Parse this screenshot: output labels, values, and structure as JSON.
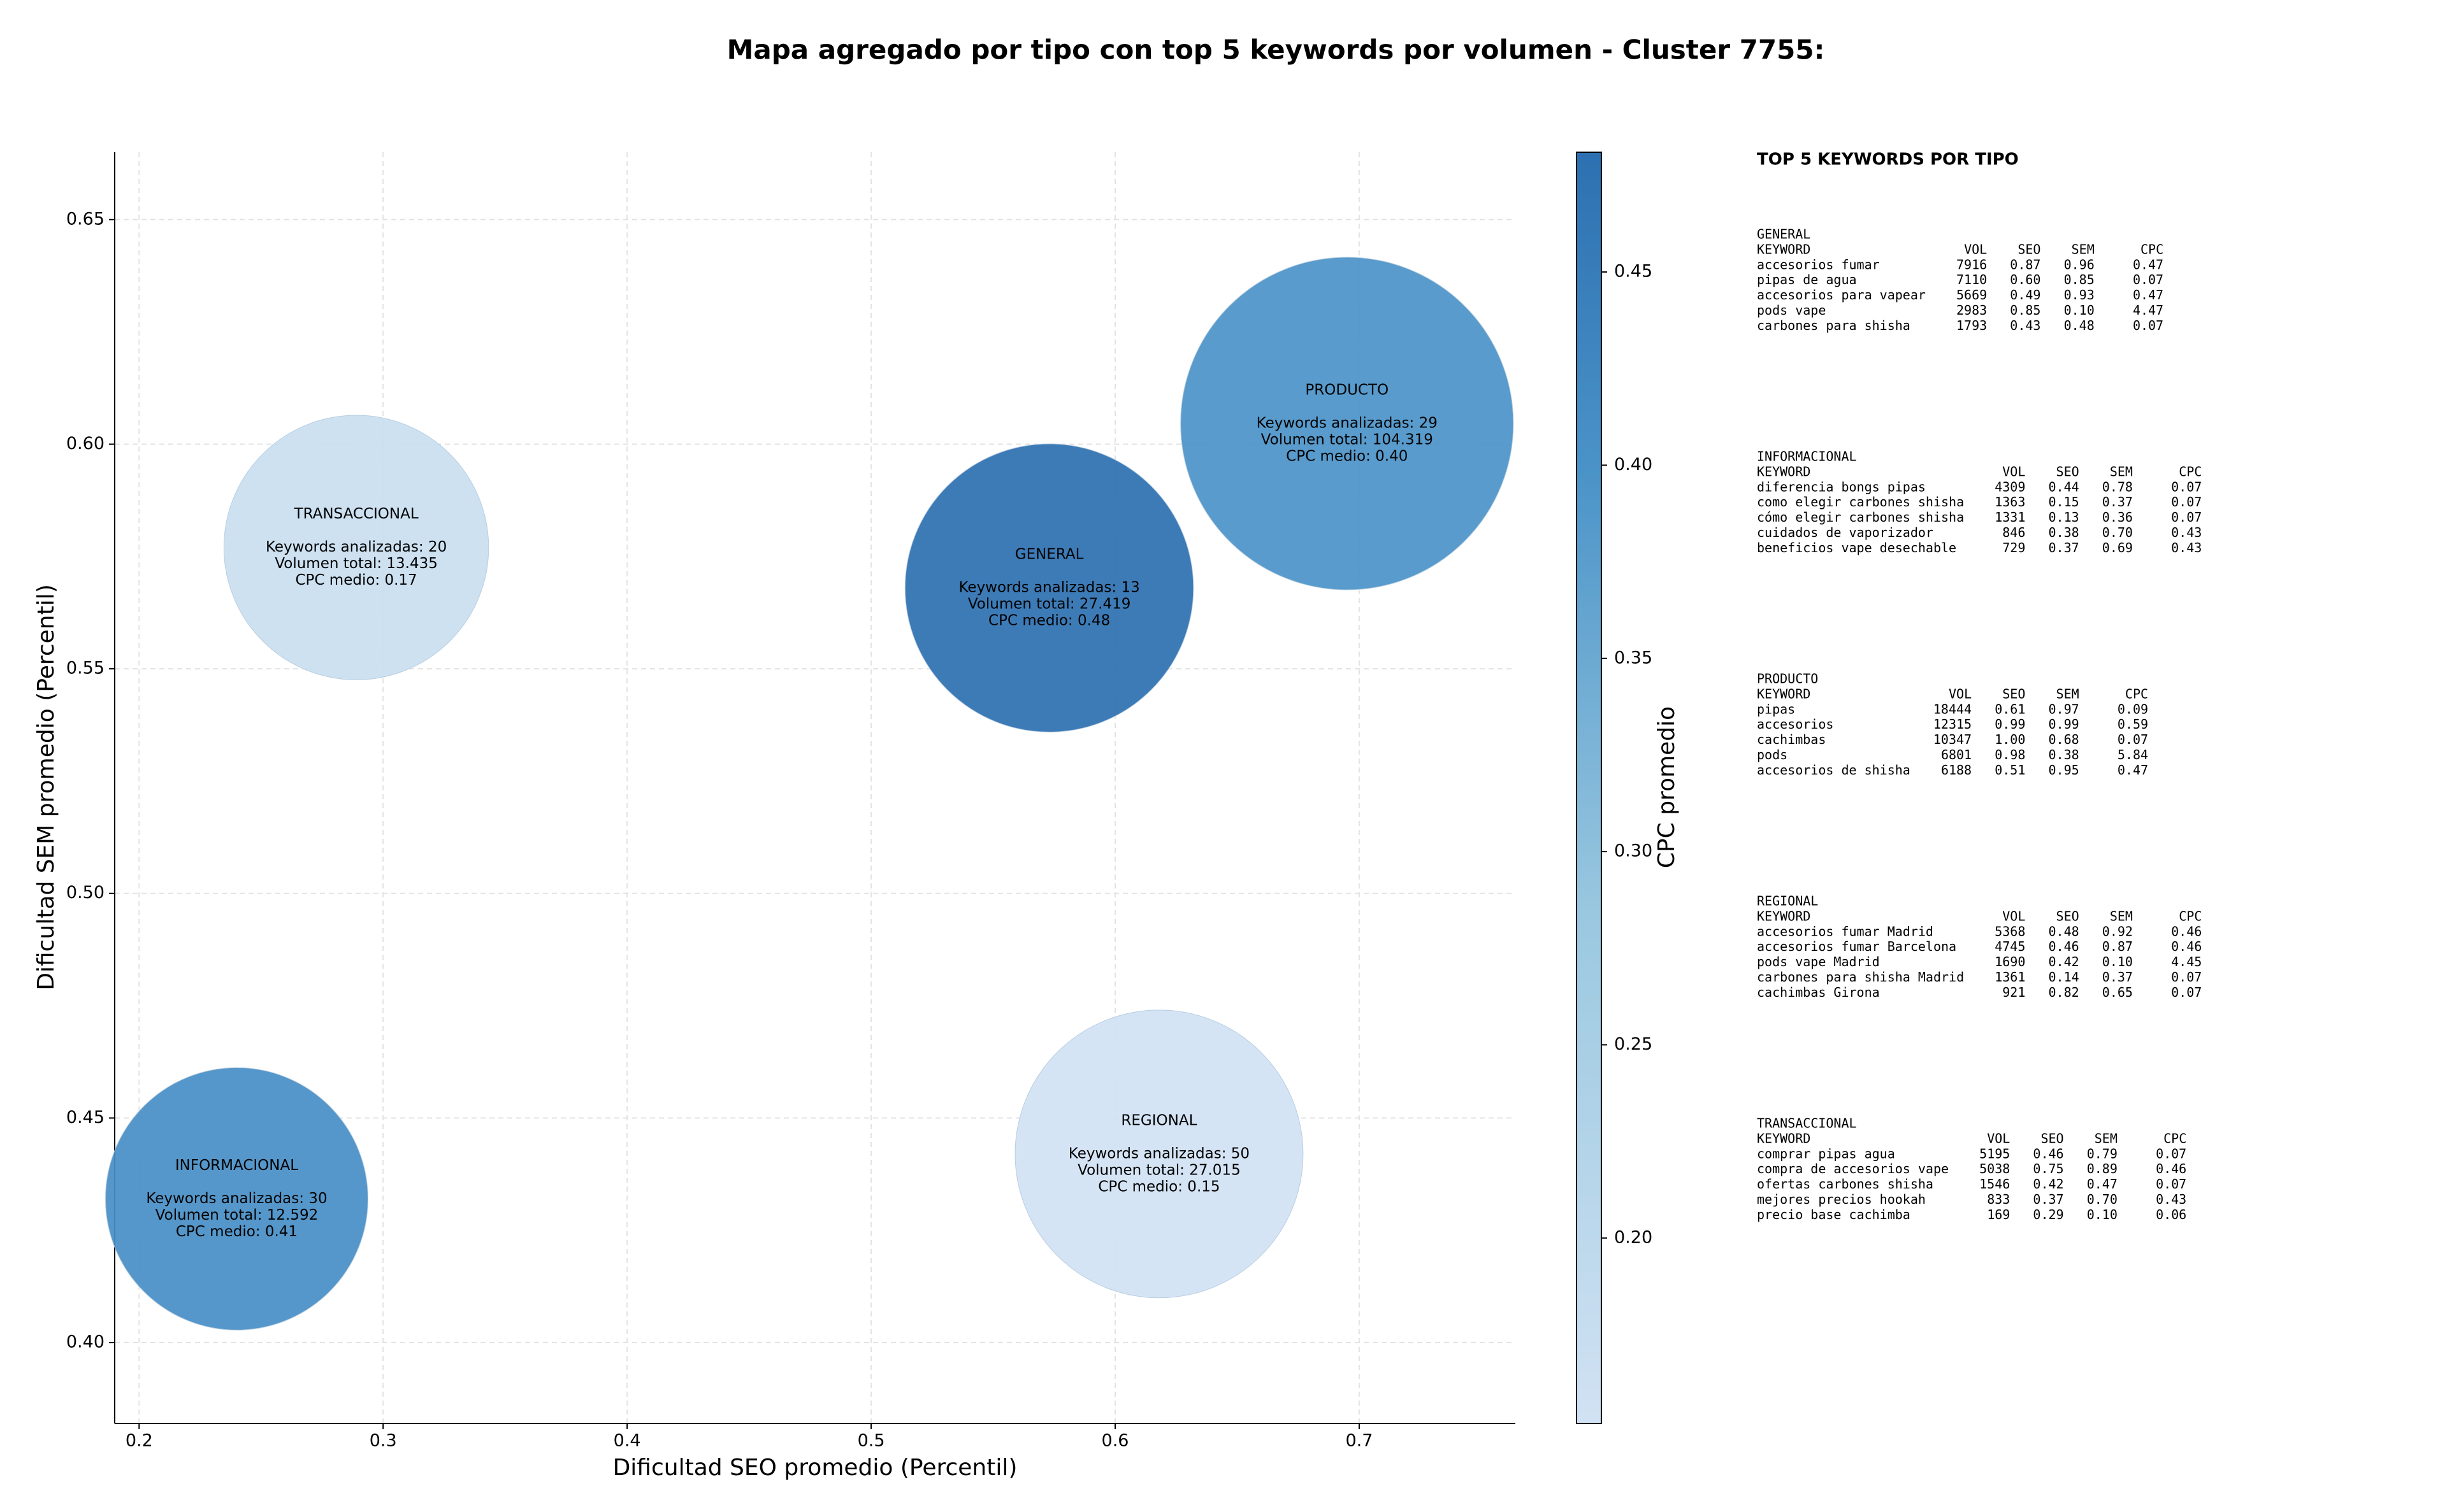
{
  "chart_data": {
    "type": "bubble",
    "title": "Mapa agregado por tipo con top 5 keywords por volumen - Cluster 7755:",
    "xlabel": "Dificultad SEO promedio (Percentil)",
    "ylabel": "Dificultad SEM promedio (Percentil)",
    "xlim": [
      0.19,
      0.764
    ],
    "ylim": [
      0.382,
      0.665
    ],
    "xticks": [
      0.2,
      0.3,
      0.4,
      0.5,
      0.6,
      0.7
    ],
    "yticks": [
      {
        "value": 0.4,
        "label": "0.40"
      },
      0.45,
      {
        "value": 0.5,
        "label": "0.50"
      },
      0.55,
      {
        "value": 0.6,
        "label": "0.60"
      },
      0.65
    ],
    "grid": true,
    "colorbar": {
      "label": "CPC promedio",
      "lim": [
        0.152,
        0.481
      ],
      "ticks": [
        {
          "value": 0.2,
          "label": "0.20"
        },
        0.25,
        {
          "value": 0.3,
          "label": "0.30"
        },
        0.35,
        {
          "value": 0.4,
          "label": "0.40"
        },
        0.45
      ]
    },
    "series": [
      {
        "name": "GENERAL",
        "x": 0.573,
        "y": 0.568,
        "keywords": 13,
        "size": 27419,
        "cpc": 0.48,
        "labels": [
          "Keywords analizadas: 13",
          "Volumen total: 27.419",
          "CPC medio: 0.48"
        ]
      },
      {
        "name": "PRODUCTO",
        "x": 0.695,
        "y": 0.6046,
        "keywords": 29,
        "size": 104319,
        "cpc": 0.4,
        "labels": [
          "Keywords analizadas: 29",
          "Volumen total: 104.319",
          "CPC medio: 0.40"
        ]
      },
      {
        "name": "TRANSACCIONAL",
        "x": 0.289,
        "y": 0.577,
        "keywords": 20,
        "size": 13435,
        "cpc": 0.17,
        "labels": [
          "Keywords analizadas: 20",
          "Volumen total: 13.435",
          "CPC medio: 0.17"
        ]
      },
      {
        "name": "INFORMACIONAL",
        "x": 0.24,
        "y": 0.432,
        "keywords": 30,
        "size": 12592,
        "cpc": 0.41,
        "labels": [
          "Keywords analizadas: 30",
          "Volumen total: 12.592",
          "CPC medio: 0.41"
        ]
      },
      {
        "name": "REGIONAL",
        "x": 0.618,
        "y": 0.442,
        "keywords": 50,
        "size": 27015,
        "cpc": 0.15,
        "labels": [
          "Keywords analizadas: 50",
          "Volumen total: 27.015",
          "CPC medio: 0.15"
        ]
      }
    ]
  },
  "panel": {
    "title": "TOP 5 KEYWORDS POR TIPO",
    "header": [
      "KEYWORD",
      "VOL",
      "SEO",
      "SEM",
      "CPC"
    ],
    "groups": [
      {
        "name": "GENERAL",
        "rows": [
          [
            "accesorios fumar",
            "7916",
            "0.87",
            "0.96",
            "0.47"
          ],
          [
            "pipas de agua",
            "7110",
            "0.60",
            "0.85",
            "0.07"
          ],
          [
            "accesorios para vapear",
            "5669",
            "0.49",
            "0.93",
            "0.47"
          ],
          [
            "pods vape",
            "2983",
            "0.85",
            "0.10",
            "4.47"
          ],
          [
            "carbones para shisha",
            "1793",
            "0.43",
            "0.48",
            "0.07"
          ]
        ]
      },
      {
        "name": "INFORMACIONAL",
        "rows": [
          [
            "diferencia bongs pipas",
            "4309",
            "0.44",
            "0.78",
            "0.07"
          ],
          [
            "como elegir carbones shisha",
            "1363",
            "0.15",
            "0.37",
            "0.07"
          ],
          [
            "cómo elegir carbones shisha",
            "1331",
            "0.13",
            "0.36",
            "0.07"
          ],
          [
            "cuidados de vaporizador",
            "846",
            "0.38",
            "0.70",
            "0.43"
          ],
          [
            "beneficios vape desechable",
            "729",
            "0.37",
            "0.69",
            "0.43"
          ]
        ]
      },
      {
        "name": "PRODUCTO",
        "rows": [
          [
            "pipas",
            "18444",
            "0.61",
            "0.97",
            "0.09"
          ],
          [
            "accesorios",
            "12315",
            "0.99",
            "0.99",
            "0.59"
          ],
          [
            "cachimbas",
            "10347",
            "1.00",
            "0.68",
            "0.07"
          ],
          [
            "pods",
            "6801",
            "0.98",
            "0.38",
            "5.84"
          ],
          [
            "accesorios de shisha",
            "6188",
            "0.51",
            "0.95",
            "0.47"
          ]
        ]
      },
      {
        "name": "REGIONAL",
        "rows": [
          [
            "accesorios fumar Madrid",
            "5368",
            "0.48",
            "0.92",
            "0.46"
          ],
          [
            "accesorios fumar Barcelona",
            "4745",
            "0.46",
            "0.87",
            "0.46"
          ],
          [
            "pods vape Madrid",
            "1690",
            "0.42",
            "0.10",
            "4.45"
          ],
          [
            "carbones para shisha Madrid",
            "1361",
            "0.14",
            "0.37",
            "0.07"
          ],
          [
            "cachimbas Girona",
            "921",
            "0.82",
            "0.65",
            "0.07"
          ]
        ]
      },
      {
        "name": "TRANSACCIONAL",
        "rows": [
          [
            "comprar pipas agua",
            "5195",
            "0.46",
            "0.79",
            "0.07"
          ],
          [
            "compra de accesorios vape",
            "5038",
            "0.75",
            "0.89",
            "0.46"
          ],
          [
            "ofertas carbones shisha",
            "1546",
            "0.42",
            "0.47",
            "0.07"
          ],
          [
            "mejores precios hookah",
            "833",
            "0.37",
            "0.70",
            "0.43"
          ],
          [
            "precio base cachimba",
            "169",
            "0.29",
            "0.10",
            "0.06"
          ]
        ]
      }
    ]
  }
}
